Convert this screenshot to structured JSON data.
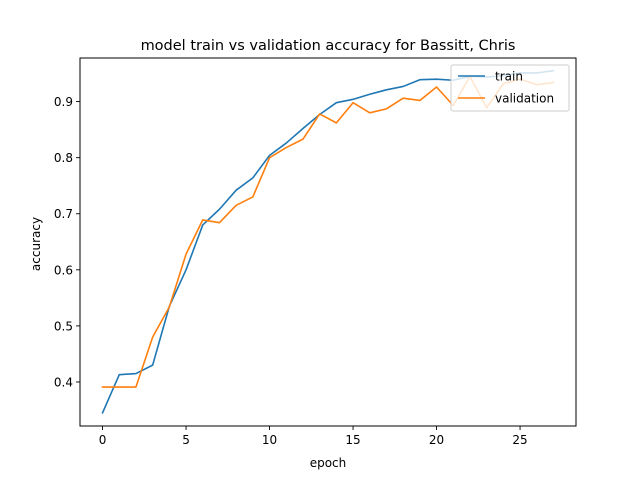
{
  "chart_data": {
    "type": "line",
    "title": "model train vs validation accuracy for Bassitt, Chris",
    "xlabel": "epoch",
    "ylabel": "accuracy",
    "xlim": [
      -1.35,
      28.35
    ],
    "ylim": [
      0.3215,
      0.9777
    ],
    "xticks": [
      0,
      5,
      10,
      15,
      20,
      25
    ],
    "yticks": [
      0.4,
      0.5,
      0.6,
      0.7,
      0.8,
      0.9
    ],
    "ytick_labels": [
      "0.4",
      "0.5",
      "0.6",
      "0.7",
      "0.8",
      "0.9"
    ],
    "grid": false,
    "legend": {
      "placement": "upper right",
      "entries": [
        "train",
        "validation"
      ]
    },
    "x": [
      0,
      1,
      2,
      3,
      4,
      5,
      6,
      7,
      8,
      9,
      10,
      11,
      12,
      13,
      14,
      15,
      16,
      17,
      18,
      19,
      20,
      21,
      22,
      23,
      24,
      25,
      26,
      27
    ],
    "series": [
      {
        "name": "train",
        "color": "#1f77b4",
        "values": [
          0.345,
          0.413,
          0.415,
          0.43,
          0.535,
          0.6,
          0.68,
          0.708,
          0.742,
          0.764,
          0.804,
          0.826,
          0.852,
          0.877,
          0.898,
          0.904,
          0.913,
          0.921,
          0.927,
          0.939,
          0.94,
          0.938,
          0.945,
          0.944,
          0.946,
          0.951,
          0.951,
          0.955
        ]
      },
      {
        "name": "validation",
        "color": "#ff7f0e",
        "values": [
          0.391,
          0.391,
          0.391,
          0.48,
          0.534,
          0.628,
          0.689,
          0.684,
          0.715,
          0.73,
          0.8,
          0.818,
          0.833,
          0.878,
          0.862,
          0.898,
          0.88,
          0.887,
          0.906,
          0.902,
          0.926,
          0.893,
          0.945,
          0.889,
          0.932,
          0.94,
          0.93,
          0.934
        ]
      }
    ]
  }
}
